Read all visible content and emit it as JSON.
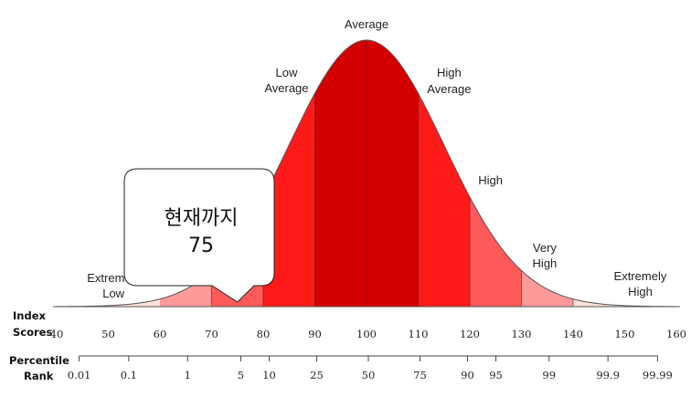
{
  "chart_data": {
    "type": "area",
    "title": "",
    "distribution": {
      "mean": 100,
      "sd": 15
    },
    "x_range": [
      40,
      160
    ],
    "row_headers": {
      "scores": [
        "Index",
        "Scores"
      ],
      "percentile": [
        "Percentile",
        "Rank"
      ]
    },
    "index_scores": [
      40,
      50,
      60,
      70,
      80,
      90,
      100,
      110,
      120,
      130,
      140,
      150,
      160
    ],
    "percentile_ranks": [
      {
        "label": "0.01",
        "score": 44
      },
      {
        "label": "0.1",
        "score": 53.6
      },
      {
        "label": "1",
        "score": 65
      },
      {
        "label": "5",
        "score": 75.3
      },
      {
        "label": "10",
        "score": 80.8
      },
      {
        "label": "25",
        "score": 90
      },
      {
        "label": "50",
        "score": 100
      },
      {
        "label": "75",
        "score": 110
      },
      {
        "label": "90",
        "score": 119.2
      },
      {
        "label": "95",
        "score": 124.7
      },
      {
        "label": "99",
        "score": 135
      },
      {
        "label": "99.9",
        "score": 146.4
      },
      {
        "label": "99.99",
        "score": 156
      }
    ],
    "bands": [
      {
        "from": 40,
        "to": 60,
        "color": "#fde0e0"
      },
      {
        "from": 60,
        "to": 70,
        "color": "#ff9a9a"
      },
      {
        "from": 70,
        "to": 80,
        "color": "#ff5a5a"
      },
      {
        "from": 80,
        "to": 90,
        "color": "#ff1a1a"
      },
      {
        "from": 90,
        "to": 100,
        "color": "#d40000"
      },
      {
        "from": 100,
        "to": 110,
        "color": "#d40000"
      },
      {
        "from": 110,
        "to": 120,
        "color": "#ff1a1a"
      },
      {
        "from": 120,
        "to": 130,
        "color": "#ff5a5a"
      },
      {
        "from": 130,
        "to": 140,
        "color": "#ff9a9a"
      },
      {
        "from": 140,
        "to": 160,
        "color": "#fde0e0"
      }
    ],
    "dividers": [
      70,
      80,
      90,
      100,
      110,
      120,
      130,
      140
    ],
    "category_labels": [
      {
        "lines": [
          "Extremely",
          "Low"
        ],
        "score": 51
      },
      {
        "lines": [
          "Low",
          "Average"
        ],
        "score": 84.5
      },
      {
        "lines": [
          "Average"
        ],
        "score": 100
      },
      {
        "lines": [
          "High",
          "Average"
        ],
        "score": 116
      },
      {
        "lines": [
          "High"
        ],
        "score": 124
      },
      {
        "lines": [
          "Very",
          "High"
        ],
        "score": 134.5
      },
      {
        "lines": [
          "Extremely",
          "High"
        ],
        "score": 153
      }
    ],
    "callout": {
      "lines": [
        "현재까지",
        "75"
      ],
      "score": 75
    }
  }
}
